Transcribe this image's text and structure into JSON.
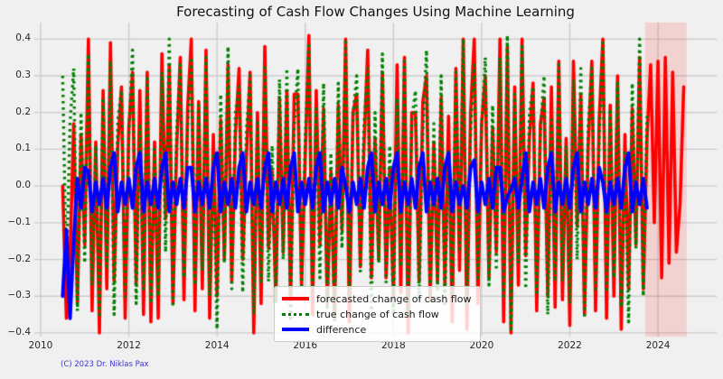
{
  "title": "Forecasting of Cash Flow Changes Using Machine Learning",
  "copyright": "(C) 2023 Dr. Niklas Pax",
  "colors": {
    "background": "#f0f0f0",
    "grid": "#cbcbcb",
    "forecast_line": "#ff0000",
    "true_line": "#008000",
    "difference_line": "#0000ff",
    "forecast_span_fill": "rgba(255,0,0,0.13)",
    "title_text": "#141414",
    "tick_text": "#262626",
    "copyright_text": "#3b35d1"
  },
  "chart_data": {
    "type": "line",
    "title": "Forecasting of Cash Flow Changes Using Machine Learning",
    "xlabel": "",
    "ylabel": "",
    "grid": true,
    "legend_position": "lower center",
    "xlim": [
      2009.857,
      2025.33
    ],
    "ylim": [
      -0.41,
      0.445
    ],
    "x_ticks": [
      {
        "v": 2010,
        "label": "2010"
      },
      {
        "v": 2012,
        "label": "2012"
      },
      {
        "v": 2014,
        "label": "2014"
      },
      {
        "v": 2016,
        "label": "2016"
      },
      {
        "v": 2018,
        "label": "2018"
      },
      {
        "v": 2020,
        "label": "2020"
      },
      {
        "v": 2022,
        "label": "2022"
      },
      {
        "v": 2024,
        "label": "2024"
      }
    ],
    "y_ticks": [
      {
        "v": 0.4,
        "label": "0.4"
      },
      {
        "v": 0.3,
        "label": "0.3"
      },
      {
        "v": 0.2,
        "label": "0.2"
      },
      {
        "v": 0.1,
        "label": "0.1"
      },
      {
        "v": 0.0,
        "label": "0.0"
      },
      {
        "v": -0.1,
        "label": "−0.1"
      },
      {
        "v": -0.2,
        "label": "−0.2"
      },
      {
        "v": -0.3,
        "label": "−0.3"
      },
      {
        "v": -0.4,
        "label": "−0.4"
      }
    ],
    "highlight_span": {
      "x0": 2023.71,
      "x1": 2024.65
    },
    "x_start": 2010.5,
    "x_step": 0.08333,
    "series": [
      {
        "name": "forecasted change of cash flow",
        "color": "#ff0000",
        "style": "solid",
        "width": 3.6,
        "values": [
          0.0,
          -0.36,
          -0.19,
          0.17,
          -0.32,
          0.14,
          -0.16,
          0.4,
          -0.34,
          0.12,
          -0.4,
          0.26,
          -0.28,
          0.39,
          -0.26,
          0.11,
          0.27,
          -0.36,
          0.16,
          0.31,
          -0.27,
          0.26,
          -0.35,
          0.31,
          -0.37,
          0.12,
          -0.36,
          0.36,
          -0.09,
          0.33,
          -0.32,
          0.1,
          0.35,
          -0.31,
          0.21,
          0.4,
          -0.34,
          0.23,
          -0.28,
          0.37,
          -0.36,
          0.14,
          -0.3,
          0.18,
          -0.2,
          0.33,
          -0.26,
          0.14,
          0.32,
          -0.2,
          0.08,
          0.31,
          -0.4,
          0.2,
          -0.32,
          0.38,
          -0.17,
          0.04,
          -0.31,
          0.24,
          -0.18,
          0.26,
          -0.31,
          0.25,
          0.25,
          -0.27,
          0.08,
          0.41,
          -0.35,
          0.26,
          -0.16,
          0.21,
          -0.32,
          0.04,
          -0.35,
          0.22,
          -0.12,
          0.4,
          -0.37,
          0.2,
          0.25,
          -0.22,
          0.11,
          0.37,
          -0.25,
          0.13,
          -0.2,
          0.31,
          -0.25,
          0.05,
          -0.3,
          0.33,
          -0.29,
          0.35,
          -0.4,
          0.2,
          0.2,
          -0.26,
          0.23,
          0.3,
          -0.31,
          0.12,
          -0.26,
          0.24,
          -0.27,
          0.19,
          -0.37,
          0.32,
          -0.23,
          0.4,
          -0.39,
          0.2,
          0.4,
          -0.32,
          0.17,
          0.3,
          -0.25,
          0.16,
          -0.18,
          0.4,
          -0.37,
          0.38,
          -0.4,
          0.27,
          -0.27,
          0.4,
          -0.19,
          0.13,
          0.28,
          -0.34,
          0.17,
          0.24,
          -0.3,
          0.27,
          -0.33,
          0.34,
          -0.31,
          0.13,
          -0.38,
          0.34,
          -0.11,
          0.25,
          -0.35,
          0.11,
          0.34,
          -0.34,
          0.18,
          0.4,
          -0.36,
          0.22,
          -0.3,
          0.3,
          -0.39,
          0.14,
          -0.28,
          0.21,
          -0.16,
          0.35,
          -0.28,
          0.13,
          0.33,
          -0.1,
          0.34,
          -0.25,
          0.35,
          -0.21,
          0.31,
          -0.18,
          -0.05,
          0.27
        ]
      },
      {
        "name": "true change of cash flow",
        "color": "#008000",
        "style": "dotted",
        "width": 3.4,
        "values": [
          0.3,
          -0.24,
          0.17,
          0.32,
          -0.34,
          0.2,
          -0.21,
          0.36,
          -0.27,
          0.11,
          -0.35,
          0.24,
          -0.22,
          0.34,
          -0.35,
          0.18,
          0.26,
          -0.31,
          0.14,
          0.37,
          -0.32,
          0.17,
          -0.28,
          0.3,
          -0.32,
          0.1,
          -0.3,
          0.31,
          -0.18,
          0.4,
          -0.33,
          0.15,
          0.33,
          -0.25,
          0.16,
          0.35,
          -0.27,
          0.22,
          -0.23,
          0.35,
          -0.3,
          0.09,
          -0.39,
          0.25,
          -0.21,
          0.38,
          -0.28,
          0.2,
          0.27,
          -0.29,
          0.15,
          0.3,
          -0.35,
          0.18,
          -0.26,
          0.33,
          -0.26,
          0.11,
          -0.32,
          0.29,
          -0.2,
          0.32,
          -0.36,
          0.16,
          0.32,
          -0.28,
          0.13,
          0.39,
          -0.29,
          0.21,
          -0.25,
          0.28,
          -0.33,
          0.09,
          -0.37,
          0.28,
          -0.17,
          0.4,
          -0.3,
          0.19,
          0.3,
          -0.24,
          0.17,
          0.32,
          -0.34,
          0.2,
          -0.21,
          0.36,
          -0.27,
          0.11,
          -0.35,
          0.24,
          -0.22,
          0.34,
          -0.35,
          0.18,
          0.26,
          -0.31,
          0.14,
          0.37,
          -0.32,
          0.17,
          -0.28,
          0.3,
          -0.32,
          0.1,
          -0.3,
          0.31,
          -0.18,
          0.4,
          -0.33,
          0.15,
          0.33,
          -0.25,
          0.16,
          0.35,
          -0.27,
          0.22,
          -0.23,
          0.35,
          -0.3,
          0.41,
          -0.39,
          0.25,
          -0.21,
          0.38,
          -0.28,
          0.2,
          0.27,
          -0.29,
          0.15,
          0.3,
          -0.35,
          0.18,
          -0.26,
          0.33,
          -0.26,
          0.11,
          -0.32,
          0.29,
          -0.2,
          0.32,
          -0.36,
          0.16,
          0.32,
          -0.28,
          0.13,
          0.39,
          -0.29,
          0.21,
          -0.25,
          0.28,
          -0.33,
          0.09,
          -0.37,
          0.28,
          -0.17,
          0.4,
          -0.3,
          0.19
        ]
      },
      {
        "name": "difference",
        "color": "#0000ff",
        "style": "solid",
        "width": 4,
        "values": [
          -0.3,
          -0.12,
          -0.36,
          -0.15,
          0.02,
          -0.06,
          0.05,
          0.04,
          -0.07,
          0.01,
          -0.05,
          0.02,
          -0.06,
          0.05,
          0.09,
          -0.07,
          0.01,
          -0.05,
          0.02,
          -0.06,
          0.05,
          0.09,
          -0.07,
          0.01,
          -0.05,
          0.02,
          -0.06,
          0.05,
          0.09,
          -0.07,
          0.01,
          -0.05,
          0.02,
          -0.06,
          0.05,
          0.05,
          -0.07,
          0.01,
          -0.05,
          0.02,
          -0.06,
          0.05,
          0.09,
          -0.07,
          0.01,
          -0.05,
          0.02,
          -0.06,
          0.05,
          0.09,
          -0.07,
          0.01,
          -0.05,
          0.02,
          -0.06,
          0.05,
          0.09,
          -0.07,
          0.01,
          -0.05,
          0.02,
          -0.06,
          0.05,
          0.09,
          -0.07,
          0.01,
          -0.05,
          0.02,
          -0.06,
          0.05,
          0.09,
          -0.07,
          0.01,
          -0.05,
          0.02,
          -0.06,
          0.05,
          0.0,
          -0.07,
          0.01,
          -0.05,
          0.02,
          -0.06,
          0.05,
          0.09,
          -0.07,
          0.01,
          -0.05,
          0.02,
          -0.06,
          0.05,
          0.09,
          -0.07,
          0.01,
          -0.05,
          0.02,
          -0.06,
          0.05,
          0.09,
          -0.07,
          0.01,
          -0.05,
          0.02,
          -0.06,
          0.05,
          0.09,
          -0.07,
          0.01,
          -0.05,
          0.0,
          -0.06,
          0.05,
          0.07,
          -0.07,
          0.01,
          -0.05,
          0.02,
          -0.06,
          0.05,
          0.05,
          -0.07,
          -0.03,
          -0.01,
          0.02,
          -0.06,
          0.02,
          0.09,
          -0.07,
          0.01,
          -0.05,
          0.02,
          -0.06,
          0.05,
          0.09,
          -0.07,
          0.01,
          -0.05,
          0.02,
          -0.06,
          0.05,
          0.09,
          -0.07,
          0.01,
          -0.05,
          0.02,
          -0.06,
          0.05,
          0.01,
          -0.07,
          0.01,
          -0.05,
          0.02,
          -0.06,
          0.05,
          0.09,
          -0.07,
          0.01,
          -0.05,
          0.02,
          -0.06
        ]
      }
    ]
  }
}
